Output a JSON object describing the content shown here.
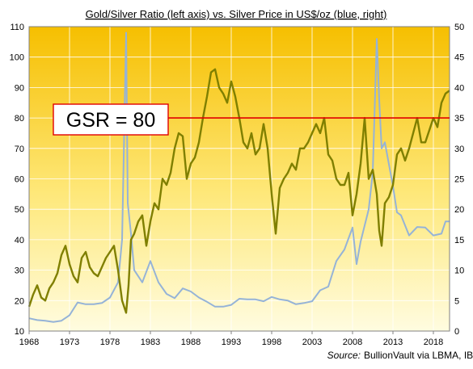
{
  "chart_data": {
    "type": "line",
    "title": "Gold/Silver Ratio (left axis) vs. Silver Price in US$/oz (blue, right)",
    "source_label": "Source:",
    "source_text": "BullionVault via LBMA, IBA",
    "annotation": {
      "text": "GSR = 80",
      "value": 80,
      "line_color": "#e00000"
    },
    "x_ticks": [
      "1968",
      "1973",
      "1978",
      "1983",
      "1988",
      "1993",
      "1998",
      "2003",
      "2008",
      "2013",
      "2018"
    ],
    "xlim": [
      1968,
      2020
    ],
    "left_axis": {
      "ticks": [
        10,
        20,
        30,
        40,
        50,
        60,
        70,
        80,
        90,
        100,
        110
      ],
      "ylim": [
        10,
        110
      ]
    },
    "right_axis": {
      "ticks": [
        0,
        5,
        10,
        15,
        20,
        25,
        30,
        35,
        40,
        45,
        50
      ],
      "ylim": [
        0,
        50
      ]
    },
    "grid": true,
    "series": [
      {
        "axis": "left",
        "color": "#7f7f00",
        "x": [
          1968,
          1968.5,
          1969,
          1969.5,
          1970,
          1970.5,
          1971,
          1971.5,
          1972,
          1972.5,
          1973,
          1973.5,
          1974,
          1974.5,
          1975,
          1975.5,
          1976,
          1976.5,
          1977,
          1977.5,
          1978,
          1978.5,
          1979,
          1979.5,
          1980,
          1980.3,
          1980.6,
          1981,
          1981.5,
          1982,
          1982.5,
          1983,
          1983.5,
          1984,
          1984.5,
          1985,
          1985.5,
          1986,
          1986.5,
          1987,
          1987.5,
          1988,
          1988.5,
          1989,
          1989.5,
          1990,
          1990.5,
          1991,
          1991.5,
          1992,
          1992.5,
          1993,
          1993.5,
          1994,
          1994.5,
          1995,
          1995.5,
          1996,
          1996.5,
          1997,
          1997.5,
          1998,
          1998.5,
          1999,
          1999.5,
          2000,
          2000.5,
          2001,
          2001.5,
          2002,
          2002.5,
          2003,
          2003.5,
          2004,
          2004.5,
          2005,
          2005.5,
          2006,
          2006.5,
          2007,
          2007.5,
          2008,
          2008.5,
          2009,
          2009.5,
          2010,
          2010.5,
          2011,
          2011.3,
          2011.6,
          2012,
          2012.5,
          2013,
          2013.5,
          2014,
          2014.5,
          2015,
          2015.5,
          2016,
          2016.5,
          2017,
          2017.5,
          2018,
          2018.5,
          2019,
          2019.5,
          2020
        ],
        "y": [
          18,
          22,
          25,
          21,
          20,
          24,
          26,
          29,
          35,
          38,
          32,
          28,
          26,
          34,
          36,
          31,
          29,
          28,
          31,
          34,
          36,
          38,
          30,
          20,
          16,
          25,
          40,
          42,
          46,
          48,
          38,
          46,
          52,
          50,
          60,
          58,
          62,
          70,
          75,
          74,
          60,
          65,
          67,
          72,
          80,
          87,
          95,
          96,
          90,
          88,
          85,
          92,
          87,
          80,
          72,
          70,
          75,
          68,
          70,
          78,
          70,
          55,
          42,
          57,
          60,
          62,
          65,
          63,
          70,
          70,
          72,
          75,
          78,
          75,
          80,
          68,
          66,
          60,
          58,
          58,
          62,
          48,
          55,
          65,
          80,
          60,
          63,
          55,
          43,
          38,
          52,
          54,
          58,
          68,
          70,
          66,
          70,
          75,
          80,
          72,
          72,
          76,
          80,
          77,
          85,
          88,
          89
        ]
      },
      {
        "axis": "right",
        "color": "#95b3d7",
        "x": [
          1968,
          1969,
          1970,
          1971,
          1972,
          1973,
          1974,
          1975,
          1976,
          1977,
          1978,
          1979,
          1979.5,
          1980,
          1980.2,
          1980.6,
          1981,
          1982,
          1983,
          1984,
          1985,
          1986,
          1987,
          1988,
          1989,
          1990,
          1991,
          1992,
          1993,
          1994,
          1995,
          1996,
          1997,
          1998,
          1999,
          2000,
          2001,
          2002,
          2003,
          2004,
          2005,
          2006,
          2007,
          2008,
          2008.5,
          2009,
          2010,
          2010.5,
          2011,
          2011.3,
          2011.6,
          2012,
          2013,
          2013.5,
          2014,
          2015,
          2016,
          2017,
          2018,
          2019,
          2019.5,
          2020
        ],
        "y": [
          2.1,
          1.8,
          1.7,
          1.5,
          1.7,
          2.6,
          4.7,
          4.4,
          4.4,
          4.6,
          5.5,
          8,
          15,
          49,
          21,
          16,
          10,
          8,
          11.5,
          8,
          6.1,
          5.4,
          7,
          6.5,
          5.5,
          4.8,
          4,
          4,
          4.3,
          5.3,
          5.2,
          5.2,
          4.9,
          5.6,
          5.2,
          5,
          4.4,
          4.6,
          4.9,
          6.7,
          7.3,
          11.5,
          13.4,
          17,
          11,
          14.7,
          20,
          26,
          48,
          38,
          30,
          31,
          23.8,
          19.5,
          19,
          15.7,
          17.1,
          17,
          15.7,
          16,
          18,
          18
        ]
      }
    ]
  }
}
